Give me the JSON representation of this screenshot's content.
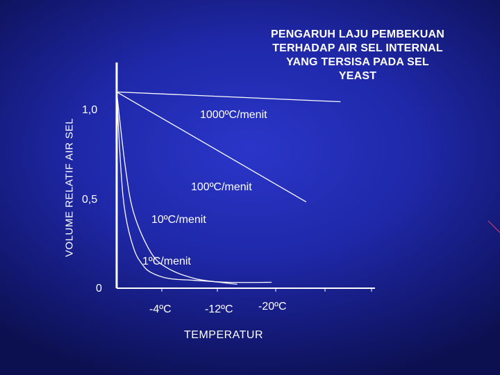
{
  "chart_data": {
    "type": "line",
    "title": "PENGARUH LAJU PEMBEKUAN\nTERHADAP AIR SEL INTERNAL\nYANG TERSISA PADA SEL\nYEAST",
    "xlabel": "TEMPERATUR",
    "ylabel": "VOLUME RELATIF AIR SEL",
    "yticks": [
      {
        "value": 1.0,
        "label": "1,0"
      },
      {
        "value": 0.5,
        "label": "0,5"
      },
      {
        "value": 0,
        "label": "0"
      }
    ],
    "xticks": [
      {
        "value": -4,
        "label": "-4ºC"
      },
      {
        "value": -12,
        "label": "-12ºC"
      },
      {
        "value": -20,
        "label": "-20ºC"
      }
    ],
    "xlim": [
      0,
      -30
    ],
    "ylim": [
      0,
      1.15
    ],
    "series": [
      {
        "name": "1000ºC/menit",
        "x": [
          0,
          -26
        ],
        "y": [
          1.0,
          0.95
        ]
      },
      {
        "name": "100ºC/menit",
        "x": [
          0,
          -22
        ],
        "y": [
          1.0,
          0.44
        ]
      },
      {
        "name": "10ºC/menit",
        "x": [
          0,
          -1,
          -2,
          -4,
          -6,
          -9,
          -12,
          -14
        ],
        "y": [
          1.0,
          0.62,
          0.38,
          0.18,
          0.1,
          0.05,
          0.03,
          0.02
        ]
      },
      {
        "name": "1ºC/menit",
        "x": [
          0,
          -0.5,
          -1,
          -2,
          -3,
          -4,
          -6,
          -9,
          -13,
          -18
        ],
        "y": [
          1.0,
          0.6,
          0.38,
          0.2,
          0.12,
          0.08,
          0.05,
          0.04,
          0.03,
          0.03
        ]
      }
    ],
    "colors": {
      "axis": "#ffffff",
      "lines": "#ffffff",
      "accent_stroke": "#e04060"
    }
  }
}
